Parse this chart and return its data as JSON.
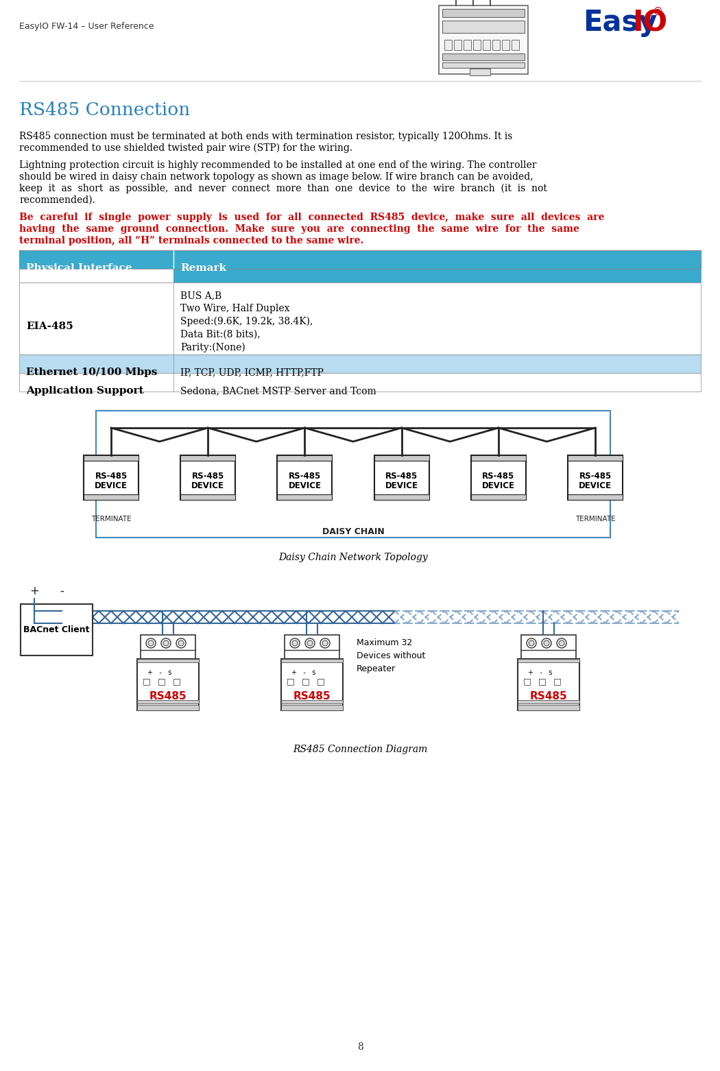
{
  "page_width": 10.5,
  "page_height": 15.62,
  "dpi": 100,
  "background_color": "#ffffff",
  "header_text": "EasyIO FW-14 – User Reference",
  "header_fontsize": 9,
  "header_color": "#333333",
  "title": "RS485 Connection",
  "title_color": "#2980B9",
  "title_fontsize": 19,
  "para1_lines": [
    "RS485 connection must be terminated at both ends with termination resistor, typically 120Ohms. It is",
    "recommended to use shielded twisted pair wire (STP) for the wiring."
  ],
  "para2_lines": [
    "Lightning protection circuit is highly recommended to be installed at one end of the wiring. The controller",
    "should be wired in daisy chain network topology as shown as image below. If wire branch can be avoided,",
    "keep  it  as  short  as  possible,  and  never  connect  more  than  one  device  to  the  wire  branch  (it  is  not",
    "recommended)."
  ],
  "para3_lines": [
    "Be  careful  if  single  power  supply  is  used  for  all  connected  RS485  device,  make  sure  all  devices  are",
    "having  the  same  ground  connection.  Make  sure  you  are  connecting  the  same  wire  for  the  same",
    "terminal position, all “H” terminals connected to the same wire."
  ],
  "para3_color": "#CC0000",
  "table_header_bg": "#3AABCC",
  "table_header_color": "#ffffff",
  "table_row_alt_bg": "#B8DCF0",
  "table_row_white_bg": "#ffffff",
  "table_border_color": "#888888",
  "table_col1_label": "Physical Interface",
  "table_col2_label": "Remark",
  "eia_label": "EIA-485",
  "eia_lines": [
    "BUS A,B",
    "Two Wire, Half Duplex",
    "Speed:(9.6K, 19.2k, 38.4K),",
    "Data Bit:(8 bits),",
    "Parity:(None)"
  ],
  "eth_label": "Ethernet 10/100 Mbps",
  "eth_remark": "IP, TCP, UDP, ICMP, HTTP,FTP",
  "app_label": "Application Support",
  "app_remark": "Sedona, BACnet MSTP Server and Tcom",
  "daisy_caption": "Daisy Chain Network Topology",
  "rs485_caption": "RS485 Connection Diagram",
  "max32_lines": [
    "Maximum 32",
    "Devices without",
    "Repeater"
  ],
  "page_number": "8",
  "body_fontsize": 10,
  "table_fontsize": 11
}
